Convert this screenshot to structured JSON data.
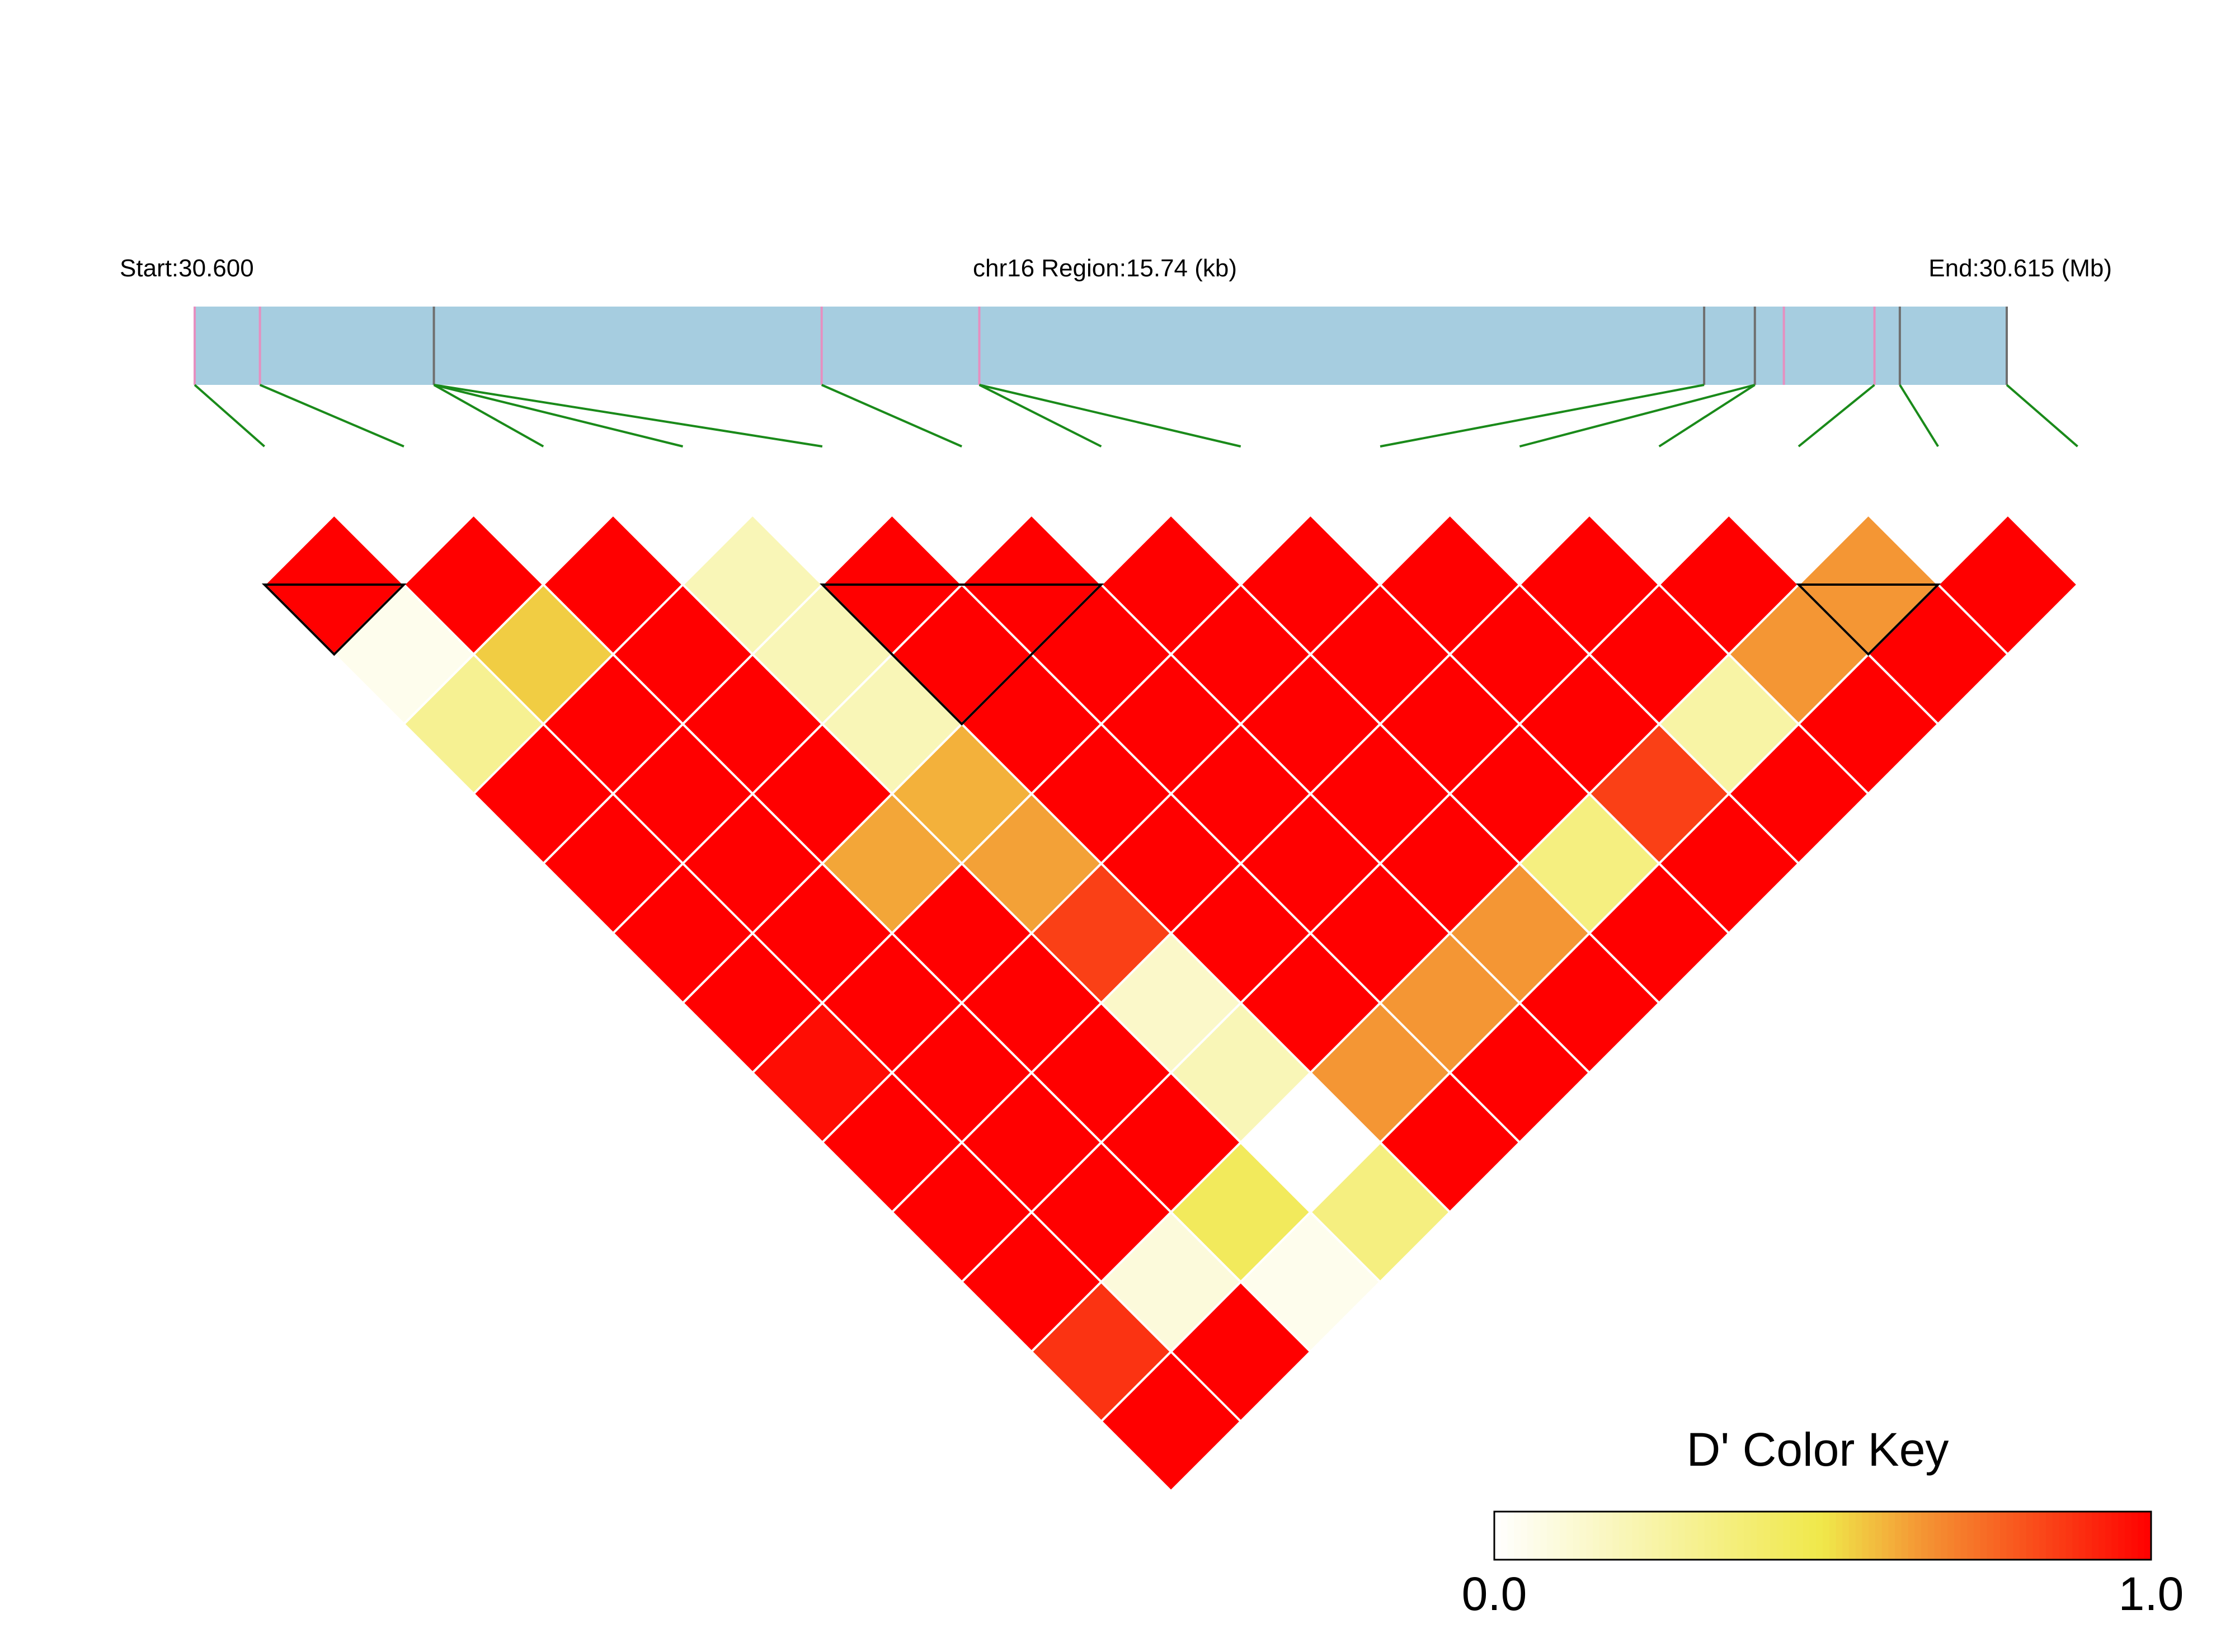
{
  "header": {
    "start_label": "Start:30.600",
    "region_label": "chr16 Region:15.74 (kb)",
    "end_label": "End:30.615 (Mb)"
  },
  "colors": {
    "gene_bar": "#a6cde0",
    "snp_pink": "#e68fc0",
    "snp_gray": "#6f6f6f",
    "connector": "#1a8a1a",
    "cell_border": "#ffffff",
    "block_outline": "#000000"
  },
  "chart_data": {
    "type": "heatmap",
    "description_kind": "LD triangle (Haploview-style)",
    "region_start_mb": 30.6,
    "region_end_mb": 30.615,
    "snp_positions_frac": [
      0.0,
      0.036,
      0.132,
      0.346,
      0.433,
      0.833,
      0.861,
      0.877,
      0.927,
      0.941,
      1.0
    ],
    "snp_marker_colors": [
      "pink",
      "pink",
      "gray",
      "pink",
      "pink",
      "gray",
      "gray",
      "pink",
      "pink",
      "gray",
      "gray"
    ],
    "connector_sources": [
      0,
      1,
      2,
      2,
      2,
      3,
      4,
      4,
      5,
      6,
      6,
      8,
      9,
      10
    ],
    "snp_count": 14,
    "dprime_matrix_diagonals": [
      [
        1.0,
        1.0,
        1.0,
        0.2,
        1.0,
        1.0,
        1.0,
        1.0,
        1.0,
        1.0,
        1.0,
        0.65,
        1.0
      ],
      [
        0.05,
        0.55,
        1.0,
        0.2,
        1.0,
        1.0,
        1.0,
        1.0,
        1.0,
        1.0,
        0.65,
        1.0
      ],
      [
        0.3,
        1.0,
        1.0,
        0.2,
        1.0,
        1.0,
        1.0,
        1.0,
        1.0,
        0.25,
        1.0
      ],
      [
        1.0,
        1.0,
        1.0,
        0.6,
        1.0,
        1.0,
        1.0,
        1.0,
        0.85,
        1.0
      ],
      [
        1.0,
        1.0,
        0.62,
        0.63,
        1.0,
        1.0,
        1.0,
        0.35,
        1.0
      ],
      [
        1.0,
        1.0,
        1.0,
        0.85,
        1.0,
        1.0,
        0.65,
        1.0
      ],
      [
        1.0,
        1.0,
        1.0,
        0.15,
        1.0,
        0.65,
        1.0
      ],
      [
        0.97,
        1.0,
        1.0,
        0.2,
        0.65,
        1.0
      ],
      [
        1.0,
        1.0,
        1.0,
        0.0,
        1.0
      ],
      [
        1.0,
        1.0,
        0.45,
        0.35
      ],
      [
        1.0,
        0.1,
        0.05
      ],
      [
        0.88,
        1.0
      ],
      [
        1.0
      ]
    ],
    "haplotype_blocks": [
      [
        0,
        1
      ],
      [
        4,
        6
      ],
      [
        11,
        12
      ]
    ],
    "color_key": {
      "title": "D' Color Key",
      "min_label": "0.0",
      "max_label": "1.0",
      "min": 0.0,
      "max": 1.0
    }
  }
}
